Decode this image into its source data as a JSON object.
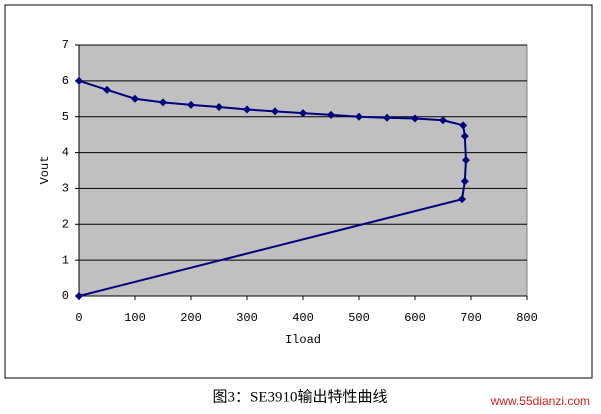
{
  "chart_data": {
    "type": "line",
    "x_label": "Iload",
    "y_label": "Vout",
    "caption": "图3：SE3910输出特性曲线",
    "watermark": "www.55dianzi.com",
    "x": [
      0,
      50,
      100,
      150,
      200,
      250,
      300,
      350,
      400,
      450,
      500,
      550,
      600,
      650,
      686,
      689,
      691,
      689,
      684,
      0
    ],
    "values": [
      6,
      5.75,
      5.5,
      5.4,
      5.33,
      5.27,
      5.2,
      5.15,
      5.1,
      5.05,
      5.0,
      4.97,
      4.95,
      4.9,
      4.76,
      4.46,
      3.79,
      3.2,
      2.7,
      0
    ],
    "color": "#00007f",
    "xlim": [
      0,
      800
    ],
    "xticks": [
      0,
      100,
      200,
      300,
      400,
      500,
      600,
      700,
      800
    ],
    "ylim": [
      0,
      7
    ],
    "yticks": [
      0,
      1,
      2,
      3,
      4,
      5,
      6,
      7
    ],
    "grid": true,
    "plot_background": "#c0c0c0"
  }
}
